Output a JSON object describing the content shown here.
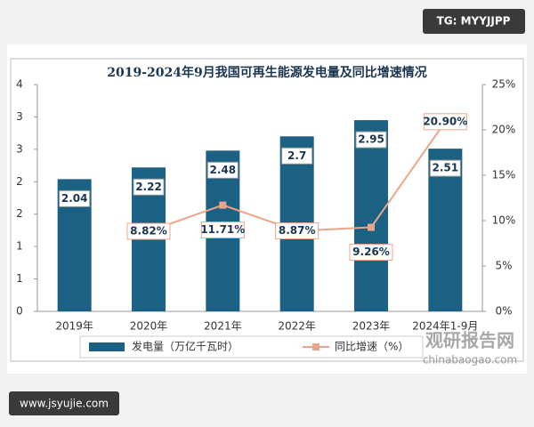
{
  "chart_data": {
    "type": "bar_line",
    "title": "2019-2024年9月我国可再生能源发电量及同比增速情况",
    "categories": [
      "2019年",
      "2020年",
      "2021年",
      "2022年",
      "2023年",
      "2024年1-9月"
    ],
    "series": [
      {
        "name": "发电量（万亿千瓦时）",
        "type": "bar",
        "color": "#1b6184",
        "values": [
          2.04,
          2.22,
          2.48,
          2.7,
          2.95,
          2.51
        ]
      },
      {
        "name": "同比增速（%）",
        "type": "line",
        "axis": "y2",
        "color": "#eba48a",
        "values": [
          null,
          8.82,
          11.71,
          8.87,
          9.26,
          20.9
        ],
        "value_labels": [
          null,
          "8.82%",
          "11.71%",
          "8.87%",
          "9.26%",
          "20.90%"
        ]
      }
    ],
    "ylim": [
      0,
      3.5
    ],
    "yticks": [
      0,
      {
        "value": 0.5,
        "label": "1"
      },
      1,
      {
        "value": 1.5,
        "label": "2"
      },
      2,
      {
        "value": 2.5,
        "label": "3"
      },
      3,
      {
        "value": 3.5,
        "label": "4"
      }
    ],
    "y2lim": [
      0,
      25
    ],
    "y2ticks": [
      {
        "value": 0,
        "label": "0%"
      },
      {
        "value": 5,
        "label": "5%"
      },
      {
        "value": 10,
        "label": "10%"
      },
      {
        "value": 15,
        "label": "15%"
      },
      {
        "value": 20,
        "label": "20%"
      },
      {
        "value": 25,
        "label": "25%"
      }
    ],
    "legend": "bottom"
  },
  "watermarks": {
    "badge_top": "TG: MYYJJPP",
    "badge_bottom": "www.jsyujie.com",
    "brand": "观研报告网",
    "brand_url": "chinabaogao.com"
  }
}
